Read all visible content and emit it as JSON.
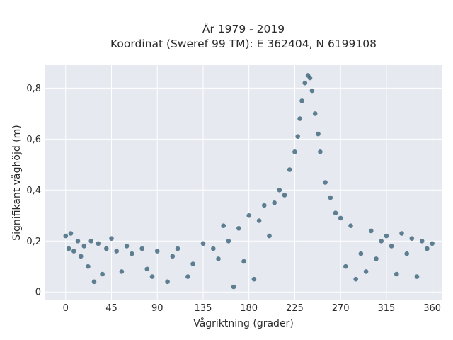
{
  "chart_data": {
    "type": "scatter",
    "title_line1": "År 1979 - 2019",
    "title_line2": "Koordinat (Sweref 99 TM): E 362404, N 6199108",
    "xlabel": "Vågriktning (grader)",
    "ylabel": "Signifikant våghöjd (m)",
    "xlim": [
      -20,
      370
    ],
    "ylim": [
      -0.03,
      0.89
    ],
    "x_ticks": [
      0,
      45,
      90,
      135,
      180,
      225,
      270,
      315,
      360
    ],
    "x_tick_labels": [
      "0",
      "45",
      "90",
      "135",
      "180",
      "225",
      "270",
      "315",
      "360"
    ],
    "y_ticks": [
      0,
      0.2,
      0.4,
      0.6,
      0.8
    ],
    "y_tick_labels": [
      "0",
      "0,2",
      "0,4",
      "0,6",
      "0,8"
    ],
    "grid": true,
    "series": [
      {
        "color": "#2f5a72",
        "points": [
          [
            0,
            0.22
          ],
          [
            3,
            0.17
          ],
          [
            5,
            0.23
          ],
          [
            8,
            0.16
          ],
          [
            12,
            0.2
          ],
          [
            15,
            0.14
          ],
          [
            18,
            0.18
          ],
          [
            22,
            0.1
          ],
          [
            25,
            0.2
          ],
          [
            28,
            0.04
          ],
          [
            32,
            0.19
          ],
          [
            36,
            0.07
          ],
          [
            40,
            0.17
          ],
          [
            45,
            0.21
          ],
          [
            50,
            0.16
          ],
          [
            55,
            0.08
          ],
          [
            60,
            0.18
          ],
          [
            65,
            0.15
          ],
          [
            75,
            0.17
          ],
          [
            80,
            0.09
          ],
          [
            85,
            0.06
          ],
          [
            90,
            0.16
          ],
          [
            100,
            0.04
          ],
          [
            105,
            0.14
          ],
          [
            110,
            0.17
          ],
          [
            120,
            0.06
          ],
          [
            125,
            0.11
          ],
          [
            135,
            0.19
          ],
          [
            145,
            0.17
          ],
          [
            150,
            0.13
          ],
          [
            155,
            0.26
          ],
          [
            160,
            0.2
          ],
          [
            165,
            0.02
          ],
          [
            170,
            0.25
          ],
          [
            175,
            0.12
          ],
          [
            180,
            0.3
          ],
          [
            185,
            0.05
          ],
          [
            190,
            0.28
          ],
          [
            195,
            0.34
          ],
          [
            200,
            0.22
          ],
          [
            205,
            0.35
          ],
          [
            210,
            0.4
          ],
          [
            215,
            0.38
          ],
          [
            220,
            0.48
          ],
          [
            225,
            0.55
          ],
          [
            228,
            0.61
          ],
          [
            230,
            0.68
          ],
          [
            232,
            0.75
          ],
          [
            235,
            0.82
          ],
          [
            238,
            0.85
          ],
          [
            240,
            0.84
          ],
          [
            242,
            0.79
          ],
          [
            245,
            0.7
          ],
          [
            248,
            0.62
          ],
          [
            250,
            0.55
          ],
          [
            255,
            0.43
          ],
          [
            260,
            0.37
          ],
          [
            265,
            0.31
          ],
          [
            270,
            0.29
          ],
          [
            275,
            0.1
          ],
          [
            280,
            0.26
          ],
          [
            285,
            0.05
          ],
          [
            290,
            0.15
          ],
          [
            295,
            0.08
          ],
          [
            300,
            0.24
          ],
          [
            305,
            0.13
          ],
          [
            310,
            0.2
          ],
          [
            315,
            0.22
          ],
          [
            320,
            0.18
          ],
          [
            325,
            0.07
          ],
          [
            330,
            0.23
          ],
          [
            335,
            0.15
          ],
          [
            340,
            0.21
          ],
          [
            345,
            0.06
          ],
          [
            350,
            0.2
          ],
          [
            355,
            0.17
          ],
          [
            360,
            0.19
          ]
        ]
      }
    ]
  }
}
